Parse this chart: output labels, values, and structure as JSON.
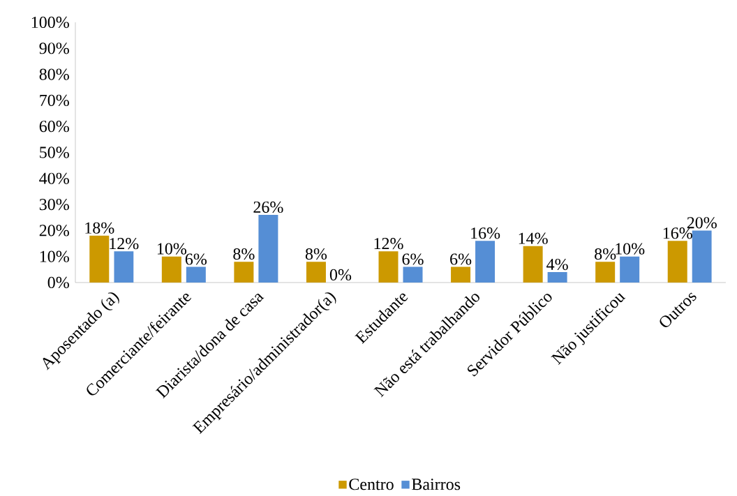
{
  "chart_data": {
    "type": "bar",
    "categories": [
      "Aposentado (a)",
      "Comerciante/feirante",
      "Diarista/dona de casa",
      "Empresário/administrador(a)",
      "Estudante",
      "Não está trabalhando",
      "Servidor Público",
      "Não justificou",
      "Outros"
    ],
    "series": [
      {
        "name": "Centro",
        "color": "#cc9900",
        "values": [
          18,
          10,
          8,
          8,
          12,
          6,
          14,
          8,
          16
        ],
        "value_labels": [
          "18%",
          "10%",
          "8%",
          "8%",
          "12%",
          "6%",
          "14%",
          "8%",
          "16%"
        ]
      },
      {
        "name": "Bairros",
        "color": "#558ed5",
        "values": [
          12,
          6,
          26,
          0,
          6,
          16,
          4,
          10,
          20
        ],
        "value_labels": [
          "12%",
          "6%",
          "26%",
          "0%",
          "6%",
          "16%",
          "4%",
          "10%",
          "20%"
        ]
      }
    ],
    "ylim": [
      0,
      100
    ],
    "yticks": [
      {
        "value": 0,
        "label": "0%"
      },
      {
        "value": 10,
        "label": "10%"
      },
      {
        "value": 20,
        "label": "20%"
      },
      {
        "value": 30,
        "label": "30%"
      },
      {
        "value": 40,
        "label": "40%"
      },
      {
        "value": 50,
        "label": "50%"
      },
      {
        "value": 60,
        "label": "60%"
      },
      {
        "value": 70,
        "label": "70%"
      },
      {
        "value": 80,
        "label": "80%"
      },
      {
        "value": 90,
        "label": "90%"
      },
      {
        "value": 100,
        "label": "100%"
      }
    ],
    "grid": false,
    "legend": "bottom"
  }
}
